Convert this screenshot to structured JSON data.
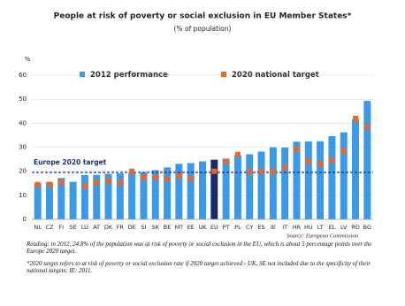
{
  "chart_data": {
    "type": "bar",
    "title": "People at risk of poverty or social exclusion in EU Member States*",
    "subtitle": "(% of population)",
    "y_label": "%",
    "categories": [
      "NL",
      "CZ",
      "FI",
      "SE",
      "LU",
      "AT",
      "DK",
      "FR",
      "DE",
      "SI",
      "SK",
      "BE",
      "MT",
      "EE",
      "UK",
      "EU",
      "PT",
      "PL",
      "CY",
      "ES",
      "IE",
      "IT",
      "HR",
      "HU",
      "LT",
      "EL",
      "LV",
      "RO",
      "BG"
    ],
    "series": [
      {
        "name": "2012 performance",
        "color": "#3a9ae8",
        "values": [
          15.0,
          15.4,
          17.2,
          15.6,
          18.4,
          18.5,
          18.9,
          19.1,
          19.6,
          19.6,
          20.5,
          21.6,
          23.1,
          23.4,
          24.1,
          24.8,
          25.3,
          26.7,
          27.1,
          28.2,
          30.0,
          29.9,
          32.3,
          32.4,
          32.5,
          34.6,
          36.2,
          41.7,
          49.3
        ]
      },
      {
        "name": "2020 national target",
        "color": "#f26522",
        "values": [
          14.5,
          14.5,
          15.5,
          null,
          14.0,
          15.5,
          16.0,
          15.5,
          20.0,
          17.5,
          17.5,
          17.0,
          18.0,
          17.0,
          null,
          20.0,
          24.0,
          27.0,
          20.0,
          20.0,
          20.0,
          21.5,
          29.0,
          24.0,
          23.0,
          24.5,
          28.5,
          42.0,
          38.5
        ]
      }
    ],
    "highlight": {
      "category": "EU",
      "color": "#1b2a6b"
    },
    "reference_line": {
      "value": 19.5,
      "label": "Europe 2020 target",
      "color": "#1a2d8a"
    },
    "ylim": [
      0,
      60
    ],
    "yticks": [
      0,
      10,
      20,
      30,
      40,
      50,
      60
    ],
    "grid": true,
    "source": "Source: European Commission",
    "notes": [
      "Reading: in 2012, 24.8% of the population was at risk of poverty or social exclusion in the EU, which is about 5 percentage points over the Europe 2020 target.",
      "*2020 target refers to at risk of poverty or social exclusion rate if 2020 target achieved  - UK, SE not included due to the specificity of their national targets; IE: 2011."
    ]
  }
}
